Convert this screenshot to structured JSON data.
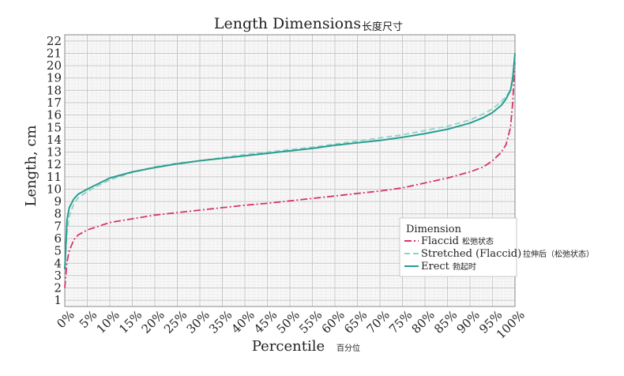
{
  "chart_data": {
    "type": "line",
    "title": "Length Dimensions",
    "title_cn": "长度尺寸",
    "xlabel": "Percentile",
    "xlabel_cn": "百分位",
    "ylabel": "Length, cm",
    "xlim": [
      0,
      100
    ],
    "ylim": [
      1,
      22
    ],
    "x_ticks": [
      "0%",
      "5%",
      "10%",
      "15%",
      "20%",
      "25%",
      "30%",
      "35%",
      "40%",
      "45%",
      "50%",
      "55%",
      "60%",
      "65%",
      "70%",
      "75%",
      "80%",
      "85%",
      "90%",
      "95%",
      "100%"
    ],
    "y_ticks": [
      "1",
      "2",
      "3",
      "4",
      "5",
      "6",
      "7",
      "8",
      "9",
      "10",
      "11",
      "12",
      "13",
      "14",
      "15",
      "16",
      "17",
      "18",
      "19",
      "20",
      "21",
      "22"
    ],
    "grid": true,
    "legend": {
      "title": "Dimension",
      "placement": "bottom-right"
    },
    "x": [
      0,
      0.5,
      1,
      2,
      3,
      5,
      7.5,
      10,
      15,
      20,
      25,
      30,
      35,
      40,
      45,
      50,
      55,
      60,
      65,
      70,
      75,
      80,
      85,
      90,
      93,
      95,
      97,
      98,
      99,
      99.5,
      100
    ],
    "series": [
      {
        "name": "Flaccid",
        "name_cn": "松弛状态",
        "color": "#d6336c",
        "dash": "dashdot",
        "values": [
          2,
          4.1,
          5.0,
          5.9,
          6.3,
          6.7,
          7.0,
          7.3,
          7.6,
          7.9,
          8.1,
          8.3,
          8.5,
          8.7,
          8.85,
          9.05,
          9.25,
          9.45,
          9.65,
          9.85,
          10.1,
          10.5,
          10.9,
          11.4,
          11.8,
          12.3,
          13.0,
          13.6,
          15.0,
          17.0,
          20.5
        ]
      },
      {
        "name": "Stretched (Flaccid)",
        "name_cn": "拉伸后（松弛状态）",
        "color": "#8fd3c7",
        "dash": "dashed",
        "values": [
          3.5,
          6.5,
          7.8,
          8.8,
          9.3,
          9.8,
          10.3,
          10.75,
          11.35,
          11.8,
          12.1,
          12.3,
          12.55,
          12.8,
          13.0,
          13.2,
          13.4,
          13.65,
          13.9,
          14.15,
          14.4,
          14.75,
          15.1,
          15.6,
          16.1,
          16.5,
          17.1,
          17.5,
          18.0,
          18.8,
          20.5
        ]
      },
      {
        "name": "Erect",
        "name_cn": "勃起时",
        "color": "#2a9d8f",
        "dash": "solid",
        "values": [
          3.5,
          7.5,
          8.5,
          9.2,
          9.6,
          10.0,
          10.45,
          10.9,
          11.4,
          11.75,
          12.05,
          12.3,
          12.5,
          12.7,
          12.9,
          13.1,
          13.3,
          13.55,
          13.75,
          13.95,
          14.2,
          14.5,
          14.85,
          15.35,
          15.8,
          16.2,
          16.8,
          17.3,
          18.0,
          19.0,
          21.0
        ]
      }
    ]
  }
}
